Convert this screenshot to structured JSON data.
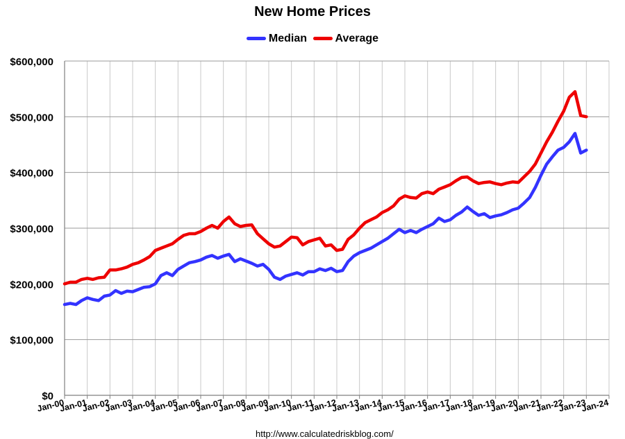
{
  "chart_data": {
    "type": "line",
    "title": "New Home Prices",
    "xlabel": "",
    "ylabel": "",
    "ylim": [
      0,
      600000
    ],
    "ytick_values": [
      0,
      100000,
      200000,
      300000,
      400000,
      500000,
      600000
    ],
    "ytick_labels": [
      "$0",
      "$100,000",
      "$200,000",
      "$300,000",
      "$400,000",
      "$500,000",
      "$600,000"
    ],
    "xtick_labels": [
      "Jan-00",
      "Jan-01",
      "Jan-02",
      "Jan-03",
      "Jan-04",
      "Jan-05",
      "Jan-06",
      "Jan-07",
      "Jan-08",
      "Jan-09",
      "Jan-10",
      "Jan-11",
      "Jan-12",
      "Jan-13",
      "Jan-14",
      "Jan-15",
      "Jan-16",
      "Jan-17",
      "Jan-18",
      "Jan-19",
      "Jan-20",
      "Jan-21",
      "Jan-22",
      "Jan-23",
      "Jan-24"
    ],
    "x_step": "quarterly, starting Jan-00",
    "grid": true,
    "legend_position": "top-center",
    "series": [
      {
        "name": "Median",
        "color": "#3333ff",
        "values": [
          163000,
          165000,
          163000,
          170000,
          175000,
          172000,
          170000,
          178000,
          180000,
          188000,
          183000,
          187000,
          186000,
          190000,
          194000,
          195000,
          200000,
          215000,
          220000,
          215000,
          226000,
          232000,
          238000,
          240000,
          243000,
          248000,
          251000,
          246000,
          250000,
          253000,
          240000,
          245000,
          241000,
          237000,
          232000,
          235000,
          226000,
          212000,
          208000,
          214000,
          217000,
          220000,
          216000,
          222000,
          222000,
          227000,
          224000,
          228000,
          222000,
          224000,
          240000,
          250000,
          256000,
          260000,
          264000,
          270000,
          276000,
          282000,
          290000,
          298000,
          292000,
          296000,
          292000,
          298000,
          303000,
          308000,
          318000,
          312000,
          315000,
          323000,
          329000,
          338000,
          330000,
          323000,
          326000,
          319000,
          322000,
          324000,
          328000,
          333000,
          336000,
          345000,
          355000,
          373000,
          395000,
          415000,
          428000,
          440000,
          445000,
          455000,
          470000,
          435000,
          440000
        ],
        "end_label": ""
      },
      {
        "name": "Average",
        "color": "#ee0000",
        "values": [
          200000,
          203000,
          203000,
          208000,
          210000,
          208000,
          211000,
          212000,
          225000,
          225000,
          227000,
          230000,
          235000,
          238000,
          243000,
          249000,
          260000,
          264000,
          268000,
          272000,
          280000,
          287000,
          290000,
          290000,
          294000,
          300000,
          305000,
          300000,
          312000,
          320000,
          308000,
          303000,
          305000,
          306000,
          290000,
          281000,
          272000,
          266000,
          268000,
          276000,
          284000,
          283000,
          270000,
          276000,
          279000,
          282000,
          268000,
          270000,
          260000,
          262000,
          280000,
          288000,
          300000,
          310000,
          315000,
          320000,
          328000,
          333000,
          340000,
          352000,
          358000,
          355000,
          354000,
          362000,
          365000,
          362000,
          370000,
          374000,
          378000,
          385000,
          391000,
          392000,
          385000,
          380000,
          382000,
          383000,
          380000,
          378000,
          381000,
          383000,
          382000,
          392000,
          402000,
          415000,
          435000,
          455000,
          472000,
          492000,
          510000,
          535000,
          545000,
          502000,
          500000
        ],
        "end_label": ""
      }
    ]
  },
  "footer_text": "http://www.calculatedriskblog.com/"
}
